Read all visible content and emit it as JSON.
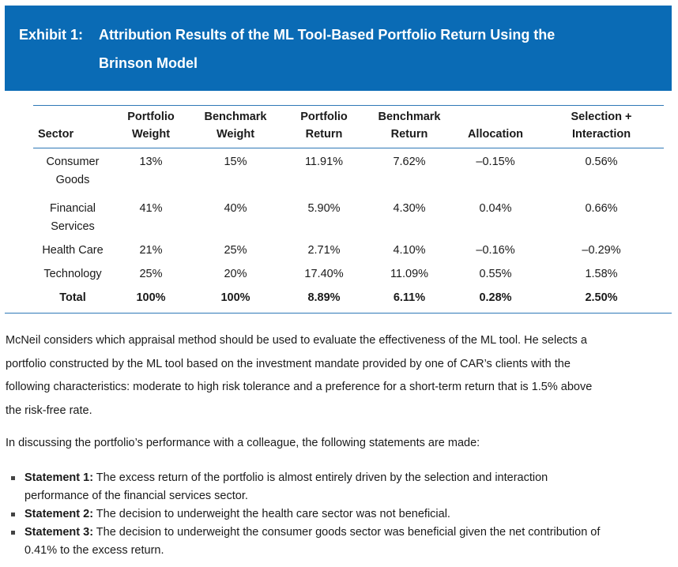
{
  "exhibit": {
    "label": "Exhibit 1:",
    "title_line1": "Attribution Results of the ML Tool-Based Portfolio Return Using the",
    "title_line2": "Brinson Model"
  },
  "table": {
    "headers": [
      {
        "l1": "",
        "l2": "Sector"
      },
      {
        "l1": "Portfolio",
        "l2": "Weight"
      },
      {
        "l1": "Benchmark",
        "l2": "Weight"
      },
      {
        "l1": "Portfolio",
        "l2": "Return"
      },
      {
        "l1": "Benchmark",
        "l2": "Return"
      },
      {
        "l1": "",
        "l2": "Allocation"
      },
      {
        "l1": "Selection +",
        "l2": "Interaction"
      }
    ],
    "rows": [
      {
        "sector_l1": "Consumer",
        "sector_l2": "Goods",
        "cells": [
          "13%",
          "15%",
          "11.91%",
          "7.62%",
          "–0.15%",
          "0.56%"
        ]
      },
      {
        "sector_l1": "Financial",
        "sector_l2": "Services",
        "cells": [
          "41%",
          "40%",
          "5.90%",
          "4.30%",
          "0.04%",
          "0.66%"
        ]
      },
      {
        "sector_l1": "Health Care",
        "sector_l2": "",
        "cells": [
          "21%",
          "25%",
          "2.71%",
          "4.10%",
          "–0.16%",
          "–0.29%"
        ]
      },
      {
        "sector_l1": "Technology",
        "sector_l2": "",
        "cells": [
          "25%",
          "20%",
          "17.40%",
          "11.09%",
          "0.55%",
          "1.58%"
        ]
      }
    ],
    "total": {
      "sector": "Total",
      "cells": [
        "100%",
        "100%",
        "8.89%",
        "6.11%",
        "0.28%",
        "2.50%"
      ]
    }
  },
  "paragraphs": {
    "p1_l1": "McNeil considers which appraisal method should be used to evaluate the effectiveness of the ML tool. He selects a",
    "p1_l2": "portfolio constructed by the ML tool based on the investment mandate provided by one of CAR’s clients with the",
    "p1_l3": "following characteristics: moderate to high risk tolerance and a preference for a short-term return that is 1.5% above",
    "p1_l4": "the risk-free rate.",
    "p2": "In discussing the portfolio’s performance with a colleague, the following statements are made:"
  },
  "statements": [
    {
      "lead": "Statement 1:",
      "l1": " The excess return of the portfolio is almost entirely driven by the selection and interaction",
      "l2": "performance of the financial services sector."
    },
    {
      "lead": "Statement 2:",
      "l1": " The decision to underweight the health care sector was not beneficial.",
      "l2": ""
    },
    {
      "lead": "Statement 3:",
      "l1": " The decision to underweight the consumer goods sector was beneficial given the net contribution of",
      "l2": "0.41% to the excess return."
    }
  ]
}
